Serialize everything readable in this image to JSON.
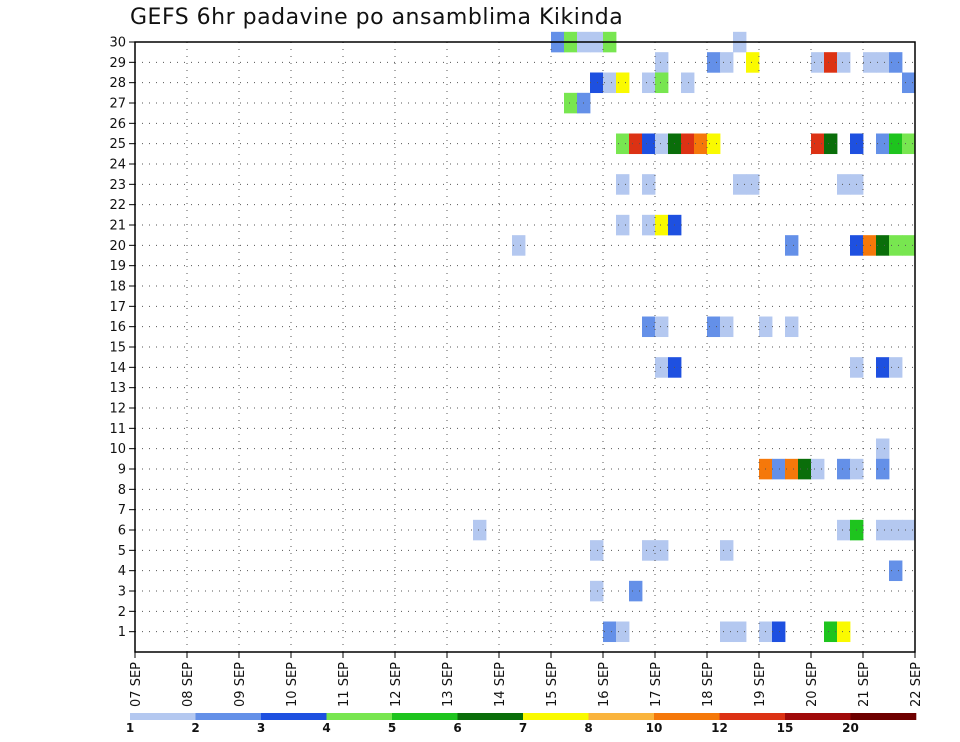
{
  "chart_data": {
    "type": "heatmap",
    "title": "GEFS 6hr padavine po ansamblima Kikinda",
    "xlabel": "",
    "ylabel": "",
    "x_ticks": [
      "07 SEP",
      "08 SEP",
      "09 SEP",
      "10 SEP",
      "11 SEP",
      "12 SEP",
      "13 SEP",
      "14 SEP",
      "15 SEP",
      "16 SEP",
      "17 SEP",
      "18 SEP",
      "19 SEP",
      "20 SEP",
      "21 SEP",
      "22 SEP"
    ],
    "y_ticks": [
      1,
      2,
      3,
      4,
      5,
      6,
      7,
      8,
      9,
      10,
      11,
      12,
      13,
      14,
      15,
      16,
      17,
      18,
      19,
      20,
      21,
      22,
      23,
      24,
      25,
      26,
      27,
      28,
      29,
      30
    ],
    "ylim": [
      0,
      30
    ],
    "grid": true,
    "cell_time_unit": "6h steps from 07 SEP 00 UTC",
    "colorbar": {
      "labels": [
        "1",
        "2",
        "3",
        "4",
        "5",
        "6",
        "7",
        "8",
        "10",
        "12",
        "15",
        "20"
      ],
      "colors": [
        "#b4c8f0",
        "#6490e8",
        "#1e50e0",
        "#78e650",
        "#1ec41e",
        "#0a6e0a",
        "#fafa00",
        "#fab43c",
        "#f5780a",
        "#dc3214",
        "#a00a0a",
        "#6e0000"
      ]
    },
    "cells": [
      {
        "m": 30,
        "t": 32,
        "c": 1
      },
      {
        "m": 30,
        "t": 33,
        "c": 3
      },
      {
        "m": 30,
        "t": 34,
        "c": 0
      },
      {
        "m": 30,
        "t": 35,
        "c": 0
      },
      {
        "m": 30,
        "t": 36,
        "c": 3
      },
      {
        "m": 30,
        "t": 46,
        "c": 0
      },
      {
        "m": 29,
        "t": 40,
        "c": 0
      },
      {
        "m": 29,
        "t": 44,
        "c": 1
      },
      {
        "m": 29,
        "t": 45,
        "c": 0
      },
      {
        "m": 29,
        "t": 47,
        "c": 6
      },
      {
        "m": 29,
        "t": 52,
        "c": 0
      },
      {
        "m": 29,
        "t": 53,
        "c": 9
      },
      {
        "m": 29,
        "t": 54,
        "c": 0
      },
      {
        "m": 29,
        "t": 56,
        "c": 0
      },
      {
        "m": 29,
        "t": 57,
        "c": 0
      },
      {
        "m": 29,
        "t": 58,
        "c": 1
      },
      {
        "m": 28,
        "t": 35,
        "c": 2
      },
      {
        "m": 28,
        "t": 36,
        "c": 0
      },
      {
        "m": 28,
        "t": 37,
        "c": 6
      },
      {
        "m": 28,
        "t": 39,
        "c": 0
      },
      {
        "m": 28,
        "t": 40,
        "c": 3
      },
      {
        "m": 28,
        "t": 42,
        "c": 0
      },
      {
        "m": 28,
        "t": 59,
        "c": 1
      },
      {
        "m": 27,
        "t": 33,
        "c": 3
      },
      {
        "m": 27,
        "t": 34,
        "c": 1
      },
      {
        "m": 25,
        "t": 37,
        "c": 3
      },
      {
        "m": 25,
        "t": 38,
        "c": 9
      },
      {
        "m": 25,
        "t": 39,
        "c": 2
      },
      {
        "m": 25,
        "t": 40,
        "c": 0
      },
      {
        "m": 25,
        "t": 41,
        "c": 5
      },
      {
        "m": 25,
        "t": 42,
        "c": 9
      },
      {
        "m": 25,
        "t": 43,
        "c": 8
      },
      {
        "m": 25,
        "t": 44,
        "c": 6
      },
      {
        "m": 25,
        "t": 52,
        "c": 9
      },
      {
        "m": 25,
        "t": 53,
        "c": 5
      },
      {
        "m": 25,
        "t": 55,
        "c": 2
      },
      {
        "m": 25,
        "t": 57,
        "c": 1
      },
      {
        "m": 25,
        "t": 58,
        "c": 4
      },
      {
        "m": 25,
        "t": 59,
        "c": 3
      },
      {
        "m": 23,
        "t": 37,
        "c": 0
      },
      {
        "m": 23,
        "t": 39,
        "c": 0
      },
      {
        "m": 23,
        "t": 46,
        "c": 0
      },
      {
        "m": 23,
        "t": 47,
        "c": 0
      },
      {
        "m": 23,
        "t": 54,
        "c": 0
      },
      {
        "m": 23,
        "t": 55,
        "c": 0
      },
      {
        "m": 21,
        "t": 37,
        "c": 0
      },
      {
        "m": 21,
        "t": 39,
        "c": 0
      },
      {
        "m": 21,
        "t": 40,
        "c": 6
      },
      {
        "m": 21,
        "t": 41,
        "c": 2
      },
      {
        "m": 20,
        "t": 29,
        "c": 0
      },
      {
        "m": 20,
        "t": 50,
        "c": 1
      },
      {
        "m": 20,
        "t": 55,
        "c": 2
      },
      {
        "m": 20,
        "t": 56,
        "c": 8
      },
      {
        "m": 20,
        "t": 57,
        "c": 5
      },
      {
        "m": 20,
        "t": 58,
        "c": 3
      },
      {
        "m": 20,
        "t": 59,
        "c": 3
      },
      {
        "m": 16,
        "t": 39,
        "c": 1
      },
      {
        "m": 16,
        "t": 40,
        "c": 0
      },
      {
        "m": 16,
        "t": 44,
        "c": 1
      },
      {
        "m": 16,
        "t": 45,
        "c": 0
      },
      {
        "m": 16,
        "t": 48,
        "c": 0
      },
      {
        "m": 16,
        "t": 50,
        "c": 0
      },
      {
        "m": 14,
        "t": 40,
        "c": 0
      },
      {
        "m": 14,
        "t": 41,
        "c": 2
      },
      {
        "m": 14,
        "t": 55,
        "c": 0
      },
      {
        "m": 14,
        "t": 57,
        "c": 2
      },
      {
        "m": 14,
        "t": 58,
        "c": 0
      },
      {
        "m": 10,
        "t": 57,
        "c": 0
      },
      {
        "m": 9,
        "t": 48,
        "c": 8
      },
      {
        "m": 9,
        "t": 49,
        "c": 1
      },
      {
        "m": 9,
        "t": 50,
        "c": 8
      },
      {
        "m": 9,
        "t": 51,
        "c": 5
      },
      {
        "m": 9,
        "t": 52,
        "c": 0
      },
      {
        "m": 9,
        "t": 54,
        "c": 1
      },
      {
        "m": 9,
        "t": 55,
        "c": 0
      },
      {
        "m": 9,
        "t": 57,
        "c": 1
      },
      {
        "m": 6,
        "t": 26,
        "c": 0
      },
      {
        "m": 6,
        "t": 54,
        "c": 0
      },
      {
        "m": 6,
        "t": 55,
        "c": 4
      },
      {
        "m": 6,
        "t": 57,
        "c": 0
      },
      {
        "m": 6,
        "t": 58,
        "c": 0
      },
      {
        "m": 6,
        "t": 59,
        "c": 0
      },
      {
        "m": 5,
        "t": 35,
        "c": 0
      },
      {
        "m": 5,
        "t": 39,
        "c": 0
      },
      {
        "m": 5,
        "t": 40,
        "c": 0
      },
      {
        "m": 5,
        "t": 45,
        "c": 0
      },
      {
        "m": 4,
        "t": 58,
        "c": 1
      },
      {
        "m": 3,
        "t": 35,
        "c": 0
      },
      {
        "m": 3,
        "t": 38,
        "c": 1
      },
      {
        "m": 1,
        "t": 36,
        "c": 1
      },
      {
        "m": 1,
        "t": 37,
        "c": 0
      },
      {
        "m": 1,
        "t": 45,
        "c": 0
      },
      {
        "m": 1,
        "t": 46,
        "c": 0
      },
      {
        "m": 1,
        "t": 48,
        "c": 0
      },
      {
        "m": 1,
        "t": 49,
        "c": 2
      },
      {
        "m": 1,
        "t": 53,
        "c": 4
      },
      {
        "m": 1,
        "t": 54,
        "c": 6
      }
    ]
  }
}
